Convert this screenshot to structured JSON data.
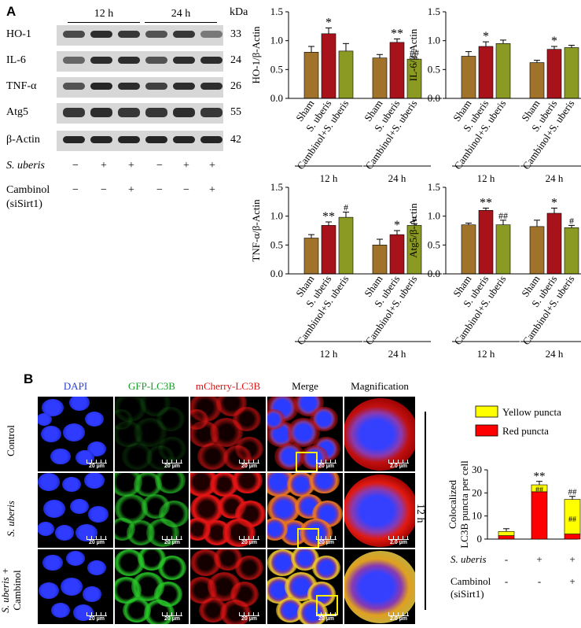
{
  "panelA": {
    "letter": "A",
    "time_headers": [
      "12 h",
      "24 h"
    ],
    "kda_header": "kDa",
    "blots": [
      {
        "protein": "HO-1",
        "kda": "33"
      },
      {
        "protein": "IL-6",
        "kda": "24"
      },
      {
        "protein": "TNF-α",
        "kda": "26"
      },
      {
        "protein": "Atg5",
        "kda": "55"
      },
      {
        "protein": "β-Actin",
        "kda": "42"
      }
    ],
    "treat_label_1": "S. uberis",
    "treat_label_2": "Cambinol",
    "treat_label_2b": "(siSirt1)",
    "treat_row_1": [
      "−",
      "+",
      "+",
      "−",
      "+",
      "+"
    ],
    "treat_row_2": [
      "−",
      "−",
      "+",
      "−",
      "−",
      "+"
    ]
  },
  "panelB": {
    "letter": "B",
    "column_headers": [
      "DAPI",
      "GFP-LC3B",
      "mCherry-LC3B",
      "Merge",
      "Magnification"
    ],
    "column_colors": [
      "#2a3cd8",
      "#1a9a2a",
      "#e01010",
      "#000000",
      "#000000"
    ],
    "row_labels": [
      "Control",
      "S. uberis",
      "S. uberis +",
      "Cambinol"
    ],
    "scale_20": "20 µm",
    "scale_2": "2.0 µm",
    "time_label": "12 h",
    "treat_label_1": "S. uberis",
    "treat_label_2": "Cambinol",
    "treat_label_2b": "(siSirt1)",
    "treat_row_1": [
      "-",
      "+",
      "+"
    ],
    "treat_row_2": [
      "-",
      "-",
      "+"
    ]
  },
  "chart_data": [
    {
      "type": "bar",
      "ylabel": "HO-1/β-Actin",
      "ylim": [
        0,
        1.5
      ],
      "yticks": [
        "0.0",
        "0.5",
        "1.0",
        "1.5"
      ],
      "categories": [
        "Sham",
        "S. uberis",
        "Cambinol+S. uberis"
      ],
      "groups": [
        "12 h",
        "24 h"
      ],
      "values": [
        [
          0.8,
          1.12,
          0.82
        ],
        [
          0.7,
          0.97,
          0.68
        ]
      ],
      "errors": [
        [
          0.1,
          0.1,
          0.13
        ],
        [
          0.06,
          0.06,
          0.03
        ]
      ],
      "annotations": [
        [
          "",
          "*",
          ""
        ],
        [
          "",
          "**",
          "##"
        ]
      ]
    },
    {
      "type": "bar",
      "ylabel": "IL-6/β-Actin",
      "ylim": [
        0,
        1.5
      ],
      "yticks": [
        "0.0",
        "0.5",
        "1.0",
        "1.5"
      ],
      "categories": [
        "Sham",
        "S. uberis",
        "Cambinol+S. uberis"
      ],
      "groups": [
        "12 h",
        "24 h"
      ],
      "values": [
        [
          0.73,
          0.9,
          0.95
        ],
        [
          0.62,
          0.85,
          0.88
        ]
      ],
      "errors": [
        [
          0.08,
          0.08,
          0.06
        ],
        [
          0.04,
          0.05,
          0.04
        ]
      ],
      "annotations": [
        [
          "",
          "*",
          ""
        ],
        [
          "",
          "*",
          ""
        ]
      ]
    },
    {
      "type": "bar",
      "ylabel": "TNF-α/β-Actin",
      "ylim": [
        0,
        1.5
      ],
      "yticks": [
        "0.0",
        "0.5",
        "1.0",
        "1.5"
      ],
      "categories": [
        "Sham",
        "S. uberis",
        "Cambinol+S. uberis"
      ],
      "groups": [
        "12 h",
        "24 h"
      ],
      "values": [
        [
          0.62,
          0.84,
          0.98
        ],
        [
          0.5,
          0.68,
          0.84
        ]
      ],
      "errors": [
        [
          0.06,
          0.06,
          0.09
        ],
        [
          0.1,
          0.07,
          0.03
        ]
      ],
      "annotations": [
        [
          "",
          "**",
          "#"
        ],
        [
          "",
          "*",
          "#"
        ]
      ]
    },
    {
      "type": "bar",
      "ylabel": "Atg5/β-Actin",
      "ylim": [
        0,
        1.5
      ],
      "yticks": [
        "0.0",
        "0.5",
        "1.0",
        "1.5"
      ],
      "categories": [
        "Sham",
        "S. uberis",
        "Cambinol+S. uberis"
      ],
      "groups": [
        "12 h",
        "24 h"
      ],
      "values": [
        [
          0.85,
          1.1,
          0.85
        ],
        [
          0.82,
          1.05,
          0.8
        ]
      ],
      "errors": [
        [
          0.03,
          0.04,
          0.08
        ],
        [
          0.11,
          0.09,
          0.04
        ]
      ],
      "annotations": [
        [
          "",
          "**",
          "##"
        ],
        [
          "",
          "*",
          "#"
        ]
      ]
    },
    {
      "type": "bar",
      "stacked": true,
      "ylabel": "Colocalized LC3B puncta per cell",
      "ylim": [
        0,
        30
      ],
      "yticks": [
        "0",
        "10",
        "20",
        "30"
      ],
      "legend": [
        "Yellow puncta",
        "Red puncta"
      ],
      "legend_colors": [
        "#ffff00",
        "#ff0000"
      ],
      "legend_position": "top-right",
      "x": [
        "1",
        "2",
        "3"
      ],
      "series": [
        {
          "name": "Red puncta",
          "values": [
            1.5,
            20.5,
            2.2
          ]
        },
        {
          "name": "Yellow puncta",
          "values": [
            1.8,
            3.0,
            15.0
          ]
        }
      ],
      "errors": [
        1.2,
        1.5,
        1.3
      ],
      "annotations": [
        "",
        "**",
        "##"
      ],
      "inner_annotations": [
        "",
        "##",
        "##"
      ]
    }
  ]
}
